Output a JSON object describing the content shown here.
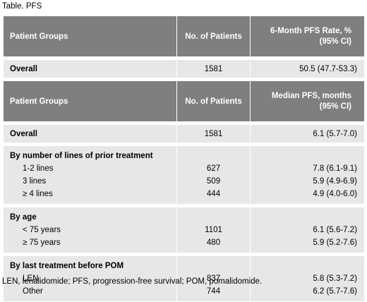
{
  "caption": "Table. PFS",
  "header1": {
    "col1": "Patient Groups",
    "col2": "No. of Patients",
    "col3_line1": "6-Month PFS Rate, %",
    "col3_line2": "(95% CI)"
  },
  "overall1": {
    "label": "Overall",
    "n": "1581",
    "value": "50.5 (47.7-53.3)"
  },
  "header2": {
    "col1": "Patient Groups",
    "col2": "No. of Patients",
    "col3_line1": "Median PFS, months",
    "col3_line2": "(95% CI)"
  },
  "overall2": {
    "label": "Overall",
    "n": "1581",
    "value": "6.1 (5.7-7.0)"
  },
  "sections": [
    {
      "title": "By number of lines of prior treatment",
      "rows": [
        {
          "label": "1-2 lines",
          "n": "627",
          "value": "7.8 (6.1-9.1)"
        },
        {
          "label": "3 lines",
          "n": "509",
          "value": "5.9 (4.9-6.9)"
        },
        {
          "label": "≥ 4 lines",
          "n": "444",
          "value": "4.9 (4.0-6.0)"
        }
      ]
    },
    {
      "title": "By age",
      "rows": [
        {
          "label": "< 75 years",
          "n": "1101",
          "value": "6.1 (5.6-7.2)"
        },
        {
          "label": "≥ 75 years",
          "n": "480",
          "value": "5.9 (5.2-7.6)"
        }
      ]
    },
    {
      "title": "By last treatment before POM",
      "rows": [
        {
          "label": "LEN",
          "n": "837",
          "value": "5.8 (5.3-7.2)"
        },
        {
          "label": "Other",
          "n": "744",
          "value": "6.2 (5.7-7.6)"
        }
      ]
    }
  ],
  "footnote": "LEN, lenalidomide; PFS, progression-free survival; POM, pomalidomide."
}
